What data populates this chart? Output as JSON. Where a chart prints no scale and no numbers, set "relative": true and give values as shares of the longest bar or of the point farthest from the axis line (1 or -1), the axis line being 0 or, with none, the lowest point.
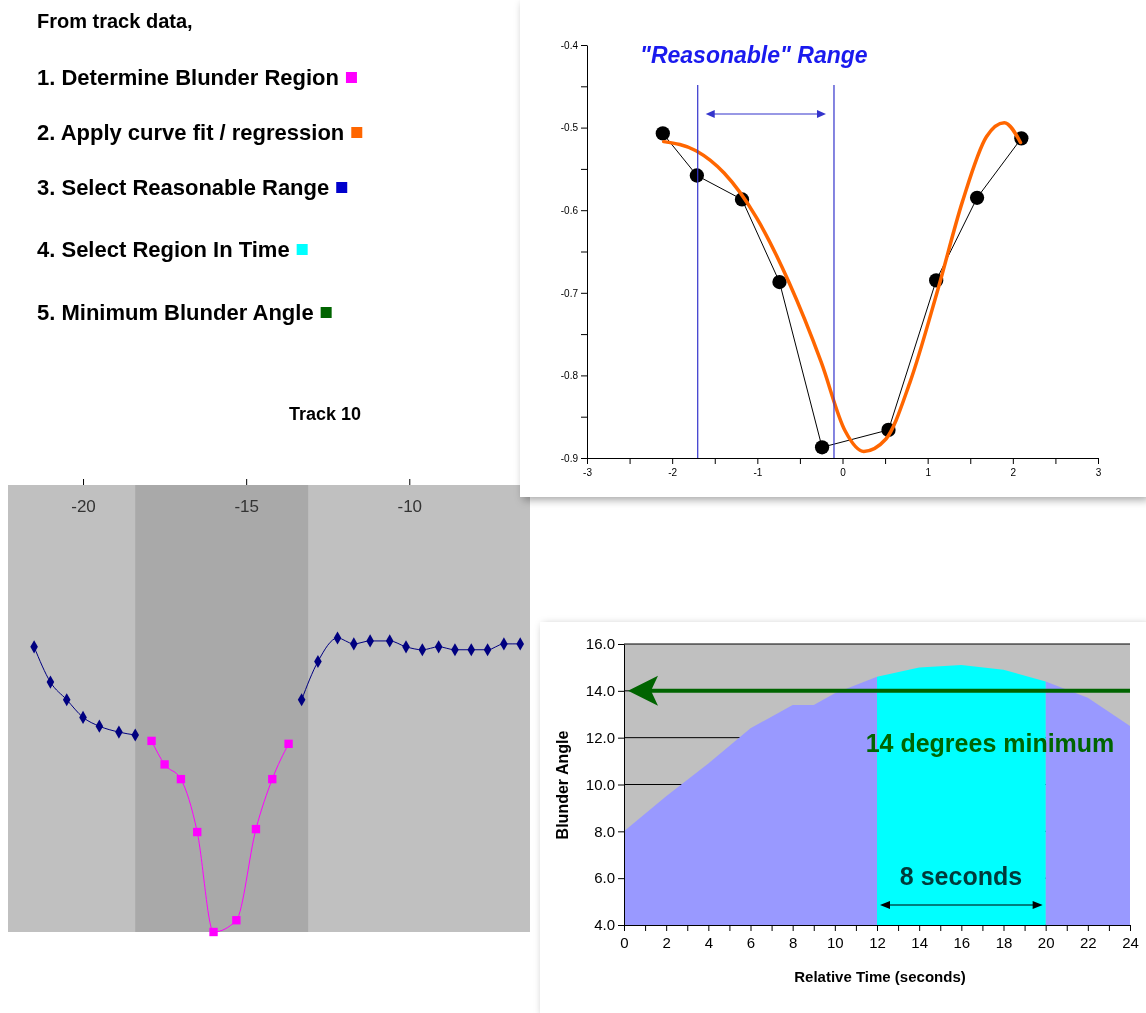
{
  "chart_data": [
    {
      "type": "other",
      "title": "From track data,",
      "annotations": [
        "1. Determine Blunder Region",
        "2. Apply curve fit / regression",
        "3. Select Reasonable Range",
        "4. Select Region In Time",
        "5. Minimum Blunder Angle"
      ],
      "colors": [
        "#ff00ff",
        "#ff6600",
        "#0000cc",
        "#00ffff",
        "#006400"
      ]
    },
    {
      "type": "line",
      "title": "Track 10",
      "relative": true,
      "xlim": [
        -22.3,
        -6.3
      ],
      "xticks": [
        -20,
        -15,
        -10
      ],
      "series": [
        {
          "color": "#000080",
          "marker": "diamond",
          "x": [
            -21.5,
            -21.0,
            -20.5,
            -20.0,
            -19.5,
            -18.9,
            -18.4,
            -16.0,
            -13.3,
            -12.8,
            -12.2,
            -11.7,
            -11.2,
            -10.6,
            -10.1,
            -9.6,
            -9.1,
            -8.6,
            -8.1,
            -7.6,
            -7.1,
            -6.6
          ],
          "values": [
            0.97,
            0.85,
            0.79,
            0.73,
            0.7,
            0.68,
            0.67,
            null,
            0.79,
            0.92,
            1,
            0.98,
            0.99,
            0.99,
            0.97,
            0.96,
            0.97,
            0.96,
            0.96,
            0.96,
            0.98,
            0.98
          ]
        },
        {
          "color": "#ff00ff",
          "marker": "square",
          "x": [
            -17.9,
            -17.5,
            -17.0,
            -16.5,
            -16.0,
            -15.3,
            -14.7,
            -14.2,
            -13.7
          ],
          "values": [
            0.65,
            0.57,
            0.52,
            0.34,
            0,
            0.04,
            0.35,
            0.52,
            0.64
          ]
        }
      ],
      "bands": [
        {
          "axis": "x",
          "from": -18.4,
          "to": -13.1,
          "color": "#a0a0a0"
        }
      ]
    },
    {
      "type": "line",
      "title": "\"Reasonable\" Range",
      "xlim": [
        -3,
        3
      ],
      "ylim": [
        -0.9,
        -0.4
      ],
      "xticks": [
        -3,
        {
          "value": -2.5,
          "label": null
        },
        -2,
        {
          "value": -1.5,
          "label": null
        },
        -1,
        {
          "value": -0.5,
          "label": null
        },
        0,
        {
          "value": 0.5,
          "label": null
        },
        1,
        {
          "value": 1.5,
          "label": null
        },
        2,
        {
          "value": 2.5,
          "label": null
        },
        3
      ],
      "yticks": [
        -0.9,
        {
          "value": -0.85,
          "label": null
        },
        -0.8,
        {
          "value": -0.75,
          "label": null
        },
        -0.7,
        {
          "value": -0.65,
          "label": null
        },
        -0.6,
        {
          "value": -0.55,
          "label": null
        },
        -0.5,
        {
          "value": -0.45,
          "label": null
        },
        -0.4
      ],
      "series": [
        {
          "color": "#000000",
          "marker": "circle",
          "x": [
            -2.11,
            -1.71,
            -1.18,
            -0.74,
            -0.24,
            0.54,
            1.1,
            1.58,
            2.1
          ],
          "values": [
            -0.507,
            -0.558,
            -0.587,
            -0.687,
            -0.887,
            -0.866,
            -0.685,
            -0.585,
            -0.513
          ]
        },
        {
          "color": "#ff6600",
          "marker": "none",
          "x": [
            -2.1,
            -1.72,
            -1.39,
            -1.01,
            -0.63,
            -0.25,
            0.03,
            0.25,
            0.51,
            0.79,
            1.12,
            1.41,
            1.69,
            1.9,
            2.09
          ],
          "values": [
            -0.517,
            -0.528,
            -0.555,
            -0.609,
            -0.687,
            -0.784,
            -0.867,
            -0.892,
            -0.877,
            -0.809,
            -0.696,
            -0.589,
            -0.511,
            -0.494,
            -0.518
          ]
        }
      ],
      "ref_lines": [
        {
          "axis": "x",
          "value": -1.7,
          "color": "#3333cc"
        },
        {
          "axis": "x",
          "value": -0.1,
          "color": "#3333cc"
        }
      ]
    },
    {
      "type": "area",
      "xlabel": "Relative Time (seconds)",
      "ylabel": "Blunder Angle",
      "xlim": [
        0,
        24
      ],
      "ylim": [
        4,
        16
      ],
      "grid": "y",
      "xticks": [
        0,
        {
          "value": 1,
          "label": null
        },
        2,
        {
          "value": 3,
          "label": null
        },
        4,
        {
          "value": 5,
          "label": null
        },
        6,
        {
          "value": 7,
          "label": null
        },
        8,
        {
          "value": 9,
          "label": null
        },
        10,
        {
          "value": 11,
          "label": null
        },
        12,
        {
          "value": 13,
          "label": null
        },
        14,
        {
          "value": 15,
          "label": null
        },
        16,
        {
          "value": 17,
          "label": null
        },
        18,
        {
          "value": 19,
          "label": null
        },
        20,
        {
          "value": 21,
          "label": null
        },
        22,
        {
          "value": 23,
          "label": null
        },
        24
      ],
      "yticks": [
        {
          "value": 4,
          "label": "4.0"
        },
        {
          "value": 6,
          "label": "6.0"
        },
        {
          "value": 8,
          "label": "8.0"
        },
        {
          "value": 10,
          "label": "10.0"
        },
        {
          "value": 12,
          "label": "12.0"
        },
        {
          "value": 14,
          "label": "14.0"
        },
        {
          "value": 16,
          "label": "16.0"
        }
      ],
      "series": [
        {
          "color": "#9999ff",
          "x": [
            0,
            2,
            4,
            6,
            8,
            9,
            10,
            12,
            16,
            20,
            22,
            24
          ],
          "values": [
            8.0,
            9.5,
            10.9,
            12.4,
            13.4,
            13.4,
            13.9,
            14.6,
            null,
            14.4,
            13.7,
            12.5
          ]
        },
        {
          "color": "#00ffff",
          "x": [
            12,
            14,
            16,
            18,
            20
          ],
          "values": [
            14.6,
            15.0,
            15.1,
            14.9,
            14.4
          ]
        }
      ],
      "ref_lines": [
        {
          "axis": "y",
          "value": 14,
          "label": "14 degrees minimum",
          "color": "#006400"
        }
      ],
      "annotations": [
        "8 seconds"
      ]
    }
  ]
}
